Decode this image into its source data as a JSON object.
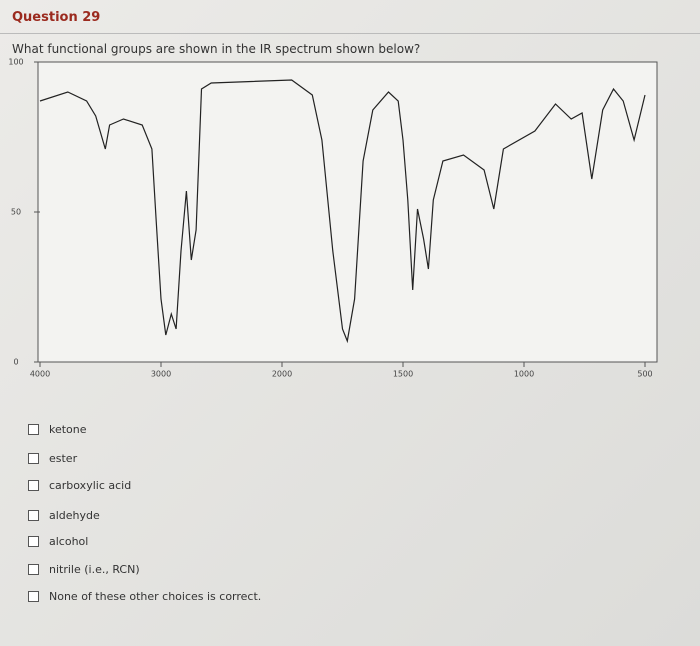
{
  "header": {
    "title": "Question 29"
  },
  "prompt": "What functional groups are shown in the IR spectrum shown below?",
  "chart_data": {
    "type": "line",
    "x": [
      4000,
      3770,
      3615,
      3540,
      3460,
      3425,
      3310,
      3155,
      3075,
      3040,
      3000,
      2960,
      2915,
      2875,
      2835,
      2790,
      2750,
      2710,
      2665,
      2585,
      1960,
      1875,
      1835,
      1790,
      1750,
      1730,
      1700,
      1665,
      1625,
      1560,
      1520,
      1500,
      1480,
      1460,
      1440,
      1415,
      1395,
      1375,
      1335,
      1250,
      1165,
      1125,
      1085,
      955,
      870,
      805,
      760,
      720,
      675,
      630,
      590,
      545,
      500
    ],
    "series": [
      {
        "color": "#222222",
        "values": [
          87,
          90,
          87,
          82,
          71,
          79,
          81,
          79,
          71,
          47,
          21,
          9,
          16,
          11,
          37,
          57,
          34,
          44,
          91,
          93,
          94,
          89,
          74,
          37,
          11,
          7,
          21,
          67,
          84,
          90,
          87,
          74,
          54,
          24,
          51,
          41,
          31,
          54,
          67,
          69,
          64,
          51,
          71,
          77,
          86,
          81,
          83,
          61,
          84,
          91,
          87,
          74,
          89
        ]
      }
    ],
    "xlim": [
      4000,
      500
    ],
    "xticks": [
      4000,
      3000,
      2000,
      1500,
      1000,
      500
    ],
    "ylim": [
      0,
      100
    ],
    "yticks": [
      0,
      50,
      100
    ]
  },
  "options": [
    "ketone",
    "ester",
    "carboxylic acid",
    "aldehyde",
    "alcohol",
    "nitrile (i.e., RCN)",
    "None of these other choices is correct."
  ]
}
